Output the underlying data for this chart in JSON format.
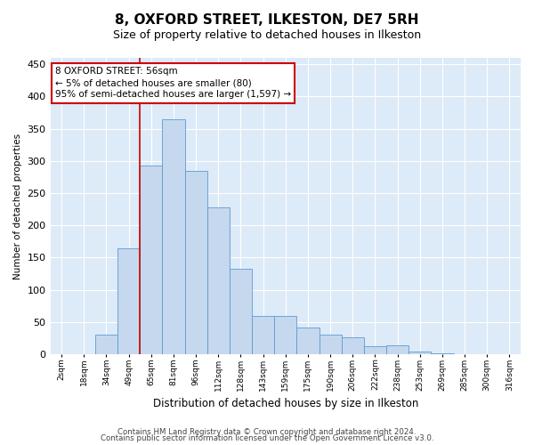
{
  "title": "8, OXFORD STREET, ILKESTON, DE7 5RH",
  "subtitle": "Size of property relative to detached houses in Ilkeston",
  "xlabel": "Distribution of detached houses by size in Ilkeston",
  "ylabel": "Number of detached properties",
  "categories": [
    "2sqm",
    "18sqm",
    "34sqm",
    "49sqm",
    "65sqm",
    "81sqm",
    "96sqm",
    "112sqm",
    "128sqm",
    "143sqm",
    "159sqm",
    "175sqm",
    "190sqm",
    "206sqm",
    "222sqm",
    "238sqm",
    "253sqm",
    "269sqm",
    "285sqm",
    "300sqm",
    "316sqm"
  ],
  "values": [
    0,
    0,
    30,
    165,
    293,
    365,
    285,
    228,
    133,
    60,
    60,
    42,
    30,
    27,
    12,
    14,
    5,
    2,
    0,
    0,
    0
  ],
  "bar_color": "#c5d8ed",
  "bar_edge_color": "#5b9bd5",
  "background_color": "#ddeaf8",
  "grid_color": "#ffffff",
  "red_line_index": 4,
  "annotation_text": "8 OXFORD STREET: 56sqm\n← 5% of detached houses are smaller (80)\n95% of semi-detached houses are larger (1,597) →",
  "annotation_box_color": "#ffffff",
  "annotation_box_edge": "#cc0000",
  "red_line_color": "#cc0000",
  "ylim": [
    0,
    460
  ],
  "yticks": [
    0,
    50,
    100,
    150,
    200,
    250,
    300,
    350,
    400,
    450
  ],
  "footer1": "Contains HM Land Registry data © Crown copyright and database right 2024.",
  "footer2": "Contains public sector information licensed under the Open Government Licence v3.0."
}
